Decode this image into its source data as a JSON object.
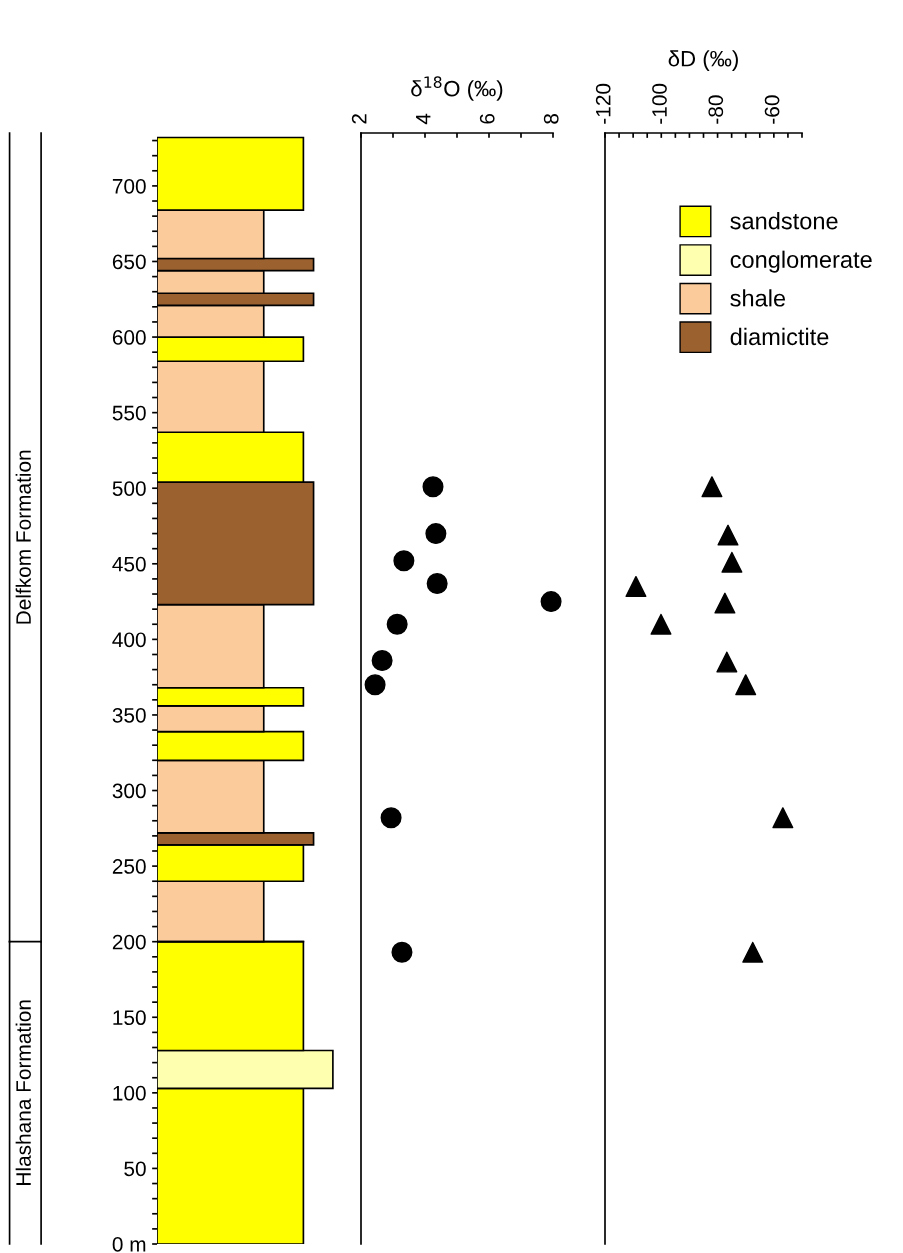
{
  "chart_data": [
    {
      "type": "bar",
      "stacked": true,
      "legend": "top right",
      "ylim": [
        0,
        735
      ],
      "yticks": [
        {
          "value": 0,
          "label": "0 m"
        },
        {
          "value": 10,
          "label": null
        },
        {
          "value": 20,
          "label": null
        },
        {
          "value": 30,
          "label": null
        },
        {
          "value": 40,
          "label": null
        },
        50,
        {
          "value": 60,
          "label": null
        },
        {
          "value": 70,
          "label": null
        },
        {
          "value": 80,
          "label": null
        },
        {
          "value": 90,
          "label": null
        },
        100,
        {
          "value": 110,
          "label": null
        },
        {
          "value": 120,
          "label": null
        },
        {
          "value": 130,
          "label": null
        },
        {
          "value": 140,
          "label": null
        },
        150,
        {
          "value": 160,
          "label": null
        },
        {
          "value": 170,
          "label": null
        },
        {
          "value": 180,
          "label": null
        },
        {
          "value": 190,
          "label": null
        },
        200,
        {
          "value": 210,
          "label": null
        },
        {
          "value": 220,
          "label": null
        },
        {
          "value": 230,
          "label": null
        },
        {
          "value": 240,
          "label": null
        },
        250,
        {
          "value": 260,
          "label": null
        },
        {
          "value": 270,
          "label": null
        },
        {
          "value": 280,
          "label": null
        },
        {
          "value": 290,
          "label": null
        },
        300,
        {
          "value": 310,
          "label": null
        },
        {
          "value": 320,
          "label": null
        },
        {
          "value": 330,
          "label": null
        },
        {
          "value": 340,
          "label": null
        },
        350,
        {
          "value": 360,
          "label": null
        },
        {
          "value": 370,
          "label": null
        },
        {
          "value": 380,
          "label": null
        },
        {
          "value": 390,
          "label": null
        },
        400,
        {
          "value": 410,
          "label": null
        },
        {
          "value": 420,
          "label": null
        },
        {
          "value": 430,
          "label": null
        },
        {
          "value": 440,
          "label": null
        },
        450,
        {
          "value": 460,
          "label": null
        },
        {
          "value": 470,
          "label": null
        },
        {
          "value": 480,
          "label": null
        },
        {
          "value": 490,
          "label": null
        },
        500,
        {
          "value": 510,
          "label": null
        },
        {
          "value": 520,
          "label": null
        },
        {
          "value": 530,
          "label": null
        },
        {
          "value": 540,
          "label": null
        },
        550,
        {
          "value": 560,
          "label": null
        },
        {
          "value": 570,
          "label": null
        },
        {
          "value": 580,
          "label": null
        },
        {
          "value": 590,
          "label": null
        },
        600,
        {
          "value": 610,
          "label": null
        },
        {
          "value": 620,
          "label": null
        },
        {
          "value": 630,
          "label": null
        },
        {
          "value": 640,
          "label": null
        },
        650,
        {
          "value": 660,
          "label": null
        },
        {
          "value": 670,
          "label": null
        },
        {
          "value": 680,
          "label": null
        },
        {
          "value": 690,
          "label": null
        },
        700,
        {
          "value": 710,
          "label": null
        },
        {
          "value": 720,
          "label": null
        },
        {
          "value": 730,
          "label": null
        }
      ],
      "tick_labels": "y",
      "categories": [
        null
      ],
      "series": [
        {
          "name": "sandstone",
          "color": "#ffff00",
          "values": [
            103
          ]
        },
        {
          "name": "conglomerate",
          "color": "#ffffb0",
          "values": [
            25
          ]
        },
        {
          "color": "#ffff00",
          "values": [
            72
          ]
        },
        {
          "name": "shale",
          "color": "#fbcb9c",
          "values": [
            40
          ]
        },
        {
          "color": "#ffff00",
          "values": [
            24
          ]
        },
        {
          "name": "diamictite",
          "color": "#9b6230",
          "values": [
            8
          ]
        },
        {
          "color": "#fbcb9c",
          "values": [
            48
          ]
        },
        {
          "color": "#ffff00",
          "values": [
            19
          ]
        },
        {
          "color": "#fbcb9c",
          "values": [
            17
          ]
        },
        {
          "color": "#ffff00",
          "values": [
            12
          ]
        },
        {
          "color": "#fbcb9c",
          "values": [
            55
          ]
        },
        {
          "color": "#9b6230",
          "values": [
            81
          ]
        },
        {
          "color": "#ffff00",
          "values": [
            33
          ]
        },
        {
          "color": "#fbcb9c",
          "values": [
            47
          ]
        },
        {
          "color": "#ffff00",
          "values": [
            16
          ]
        },
        {
          "color": "#fbcb9c",
          "values": [
            21
          ]
        },
        {
          "color": "#9b6230",
          "values": [
            8
          ]
        },
        {
          "color": "#fbcb9c",
          "values": [
            15
          ]
        },
        {
          "color": "#9b6230",
          "values": [
            8
          ]
        },
        {
          "color": "#fbcb9c",
          "values": [
            32
          ]
        },
        {
          "color": "#ffff00",
          "values": [
            48
          ]
        }
      ],
      "ref_lines": [
        {
          "axis": "y",
          "value": 200
        }
      ],
      "annotations": [
        "Hlashana Formation",
        "Delfkom Formation"
      ]
    },
    {
      "type": "scatter",
      "marker": "circle",
      "xlabel": "δ$^{18}$O (‰)",
      "tick_labels": "x",
      "xlim": [
        2,
        8
      ],
      "xticks": [
        2,
        {
          "value": 3,
          "label": null
        },
        4,
        {
          "value": 5,
          "label": null
        },
        6,
        {
          "value": 7,
          "label": null
        },
        8
      ],
      "ylim": [
        0,
        735
      ],
      "x": [
        4.25,
        4.34,
        3.34,
        4.38,
        7.94,
        3.13,
        2.66,
        2.44,
        2.94,
        3.28
      ],
      "values": [
        501,
        470,
        452,
        437,
        425,
        410,
        386,
        370,
        282,
        193
      ],
      "color": "#000000"
    },
    {
      "type": "scatter",
      "marker": "triangle",
      "xlabel": "δD (‰)",
      "tick_labels": "x",
      "xlim": [
        -120,
        -50
      ],
      "xticks": [
        -120,
        {
          "value": -115,
          "label": null
        },
        {
          "value": -110,
          "label": null
        },
        {
          "value": -105,
          "label": null
        },
        -100,
        {
          "value": -95,
          "label": null
        },
        {
          "value": -90,
          "label": null
        },
        {
          "value": -85,
          "label": null
        },
        -80,
        {
          "value": -75,
          "label": null
        },
        {
          "value": -70,
          "label": null
        },
        {
          "value": -65,
          "label": null
        },
        -60,
        {
          "value": -55,
          "label": null
        },
        {
          "value": -50,
          "label": null
        }
      ],
      "ylim": [
        0,
        735
      ],
      "x": [
        -82.0,
        -76.3,
        -74.9,
        -109.0,
        -77.4,
        -100.1,
        -76.7,
        -70.0,
        -56.8,
        -67.5
      ],
      "values": [
        501,
        469,
        451,
        435,
        424,
        410,
        385,
        370,
        282,
        193
      ],
      "color": "#000000"
    }
  ]
}
